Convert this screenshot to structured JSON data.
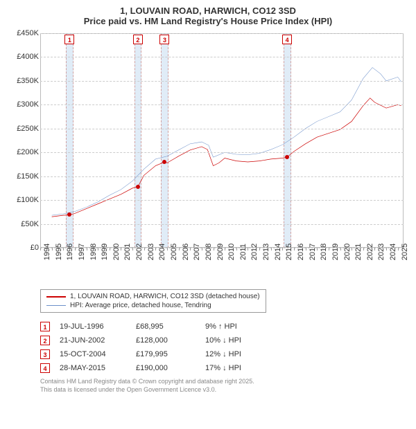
{
  "title_line1": "1, LOUVAIN ROAD, HARWICH, CO12 3SD",
  "title_line2": "Price paid vs. HM Land Registry's House Price Index (HPI)",
  "chart": {
    "type": "line",
    "background_color": "#ffffff",
    "grid_color": "#cccccc",
    "event_band_color": "#e0ecf7",
    "event_band_border": "#d0a0a0",
    "x": {
      "min": 1994,
      "max": 2025.5,
      "tick_step": 1,
      "labels": [
        "1994",
        "1995",
        "1996",
        "1997",
        "1998",
        "1999",
        "2000",
        "2001",
        "2002",
        "2003",
        "2004",
        "2005",
        "2006",
        "2007",
        "2008",
        "2009",
        "2010",
        "2011",
        "2012",
        "2013",
        "2014",
        "2015",
        "2016",
        "2017",
        "2018",
        "2019",
        "2020",
        "2021",
        "2022",
        "2023",
        "2024",
        "2025"
      ]
    },
    "y": {
      "min": 0,
      "max": 450000,
      "tick_step": 50000,
      "labels": [
        "£0",
        "£50K",
        "£100K",
        "£150K",
        "£200K",
        "£250K",
        "£300K",
        "£350K",
        "£400K",
        "£450K"
      ]
    },
    "series": [
      {
        "name": "price_paid",
        "label": "1, LOUVAIN ROAD, HARWICH, CO12 3SD (detached house)",
        "color": "#cc0000",
        "line_width": 2,
        "points": [
          [
            1995.0,
            65000
          ],
          [
            1996.0,
            68000
          ],
          [
            1996.55,
            68995
          ],
          [
            1997.0,
            72000
          ],
          [
            1998.0,
            82000
          ],
          [
            1999.0,
            92000
          ],
          [
            2000.0,
            102000
          ],
          [
            2001.0,
            112000
          ],
          [
            2002.0,
            125000
          ],
          [
            2002.47,
            128000
          ],
          [
            2003.0,
            152000
          ],
          [
            2004.0,
            172000
          ],
          [
            2004.79,
            179995
          ],
          [
            2005.0,
            178000
          ],
          [
            2006.0,
            192000
          ],
          [
            2007.0,
            205000
          ],
          [
            2008.0,
            212000
          ],
          [
            2008.5,
            206000
          ],
          [
            2009.0,
            172000
          ],
          [
            2009.5,
            178000
          ],
          [
            2010.0,
            188000
          ],
          [
            2011.0,
            182000
          ],
          [
            2012.0,
            180000
          ],
          [
            2013.0,
            182000
          ],
          [
            2014.0,
            186000
          ],
          [
            2015.0,
            188000
          ],
          [
            2015.41,
            190000
          ],
          [
            2016.0,
            202000
          ],
          [
            2017.0,
            218000
          ],
          [
            2018.0,
            232000
          ],
          [
            2019.0,
            240000
          ],
          [
            2020.0,
            248000
          ],
          [
            2021.0,
            265000
          ],
          [
            2022.0,
            298000
          ],
          [
            2022.6,
            314000
          ],
          [
            2023.0,
            305000
          ],
          [
            2024.0,
            293000
          ],
          [
            2025.0,
            300000
          ],
          [
            2025.3,
            298000
          ]
        ]
      },
      {
        "name": "hpi",
        "label": "HPI: Average price, detached house, Tendring",
        "color": "#6b8fc9",
        "line_width": 1.5,
        "points": [
          [
            1995.0,
            68000
          ],
          [
            1996.0,
            71000
          ],
          [
            1997.0,
            76000
          ],
          [
            1998.0,
            85000
          ],
          [
            1999.0,
            96000
          ],
          [
            2000.0,
            110000
          ],
          [
            2001.0,
            122000
          ],
          [
            2002.0,
            140000
          ],
          [
            2003.0,
            165000
          ],
          [
            2004.0,
            186000
          ],
          [
            2005.0,
            192000
          ],
          [
            2006.0,
            205000
          ],
          [
            2007.0,
            218000
          ],
          [
            2008.0,
            222000
          ],
          [
            2008.6,
            215000
          ],
          [
            2009.0,
            190000
          ],
          [
            2010.0,
            200000
          ],
          [
            2011.0,
            196000
          ],
          [
            2012.0,
            195000
          ],
          [
            2013.0,
            198000
          ],
          [
            2014.0,
            206000
          ],
          [
            2015.0,
            216000
          ],
          [
            2016.0,
            232000
          ],
          [
            2017.0,
            250000
          ],
          [
            2018.0,
            265000
          ],
          [
            2019.0,
            275000
          ],
          [
            2020.0,
            285000
          ],
          [
            2021.0,
            310000
          ],
          [
            2022.0,
            355000
          ],
          [
            2022.8,
            378000
          ],
          [
            2023.5,
            365000
          ],
          [
            2024.0,
            350000
          ],
          [
            2025.0,
            358000
          ],
          [
            2025.3,
            348000
          ]
        ]
      }
    ],
    "events": [
      {
        "n": "1",
        "x": 1996.55,
        "band_start": 1996.2,
        "band_end": 1996.9,
        "dot_y": 68995
      },
      {
        "n": "2",
        "x": 2002.47,
        "band_start": 2002.15,
        "band_end": 2002.8,
        "dot_y": 128000
      },
      {
        "n": "3",
        "x": 2004.79,
        "band_start": 2004.45,
        "band_end": 2005.1,
        "dot_y": 179995
      },
      {
        "n": "4",
        "x": 2015.41,
        "band_start": 2015.1,
        "band_end": 2015.75,
        "dot_y": 190000
      }
    ],
    "marker_color": "#cc0000",
    "label_fontsize": 11,
    "title_fontsize": 13
  },
  "legend": {
    "items": [
      {
        "color": "#cc0000",
        "width": 2,
        "label": "1, LOUVAIN ROAD, HARWICH, CO12 3SD (detached house)"
      },
      {
        "color": "#6b8fc9",
        "width": 1.5,
        "label": "HPI: Average price, detached house, Tendring"
      }
    ]
  },
  "sales": [
    {
      "n": "1",
      "date": "19-JUL-1996",
      "price": "£68,995",
      "delta": "9% ↑ HPI"
    },
    {
      "n": "2",
      "date": "21-JUN-2002",
      "price": "£128,000",
      "delta": "10% ↓ HPI"
    },
    {
      "n": "3",
      "date": "15-OCT-2004",
      "price": "£179,995",
      "delta": "12% ↓ HPI"
    },
    {
      "n": "4",
      "date": "28-MAY-2015",
      "price": "£190,000",
      "delta": "17% ↓ HPI"
    }
  ],
  "attribution": {
    "line1": "Contains HM Land Registry data © Crown copyright and database right 2025.",
    "line2": "This data is licensed under the Open Government Licence v3.0."
  }
}
